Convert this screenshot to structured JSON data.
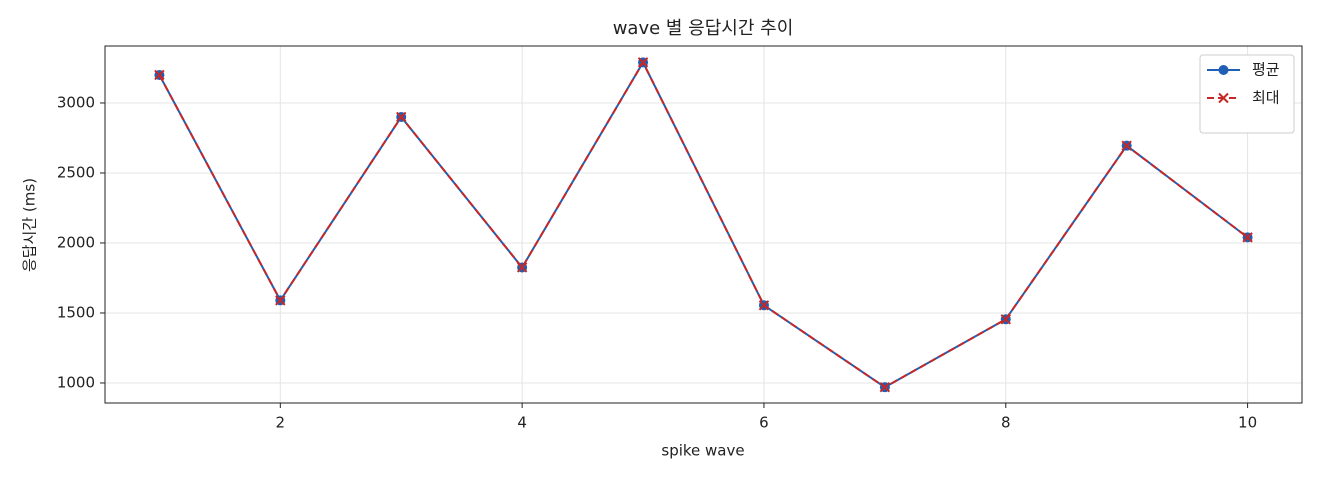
{
  "chart_data": {
    "type": "line",
    "title": "wave 별 응답시간 추이",
    "x_label": "spike wave",
    "y_label": "응답시간 (ms)",
    "x": [
      1,
      2,
      3,
      4,
      5,
      6,
      7,
      8,
      9,
      10
    ],
    "series": [
      {
        "name": "평균",
        "color": "#1f5fb4",
        "marker": "circle",
        "dash": "solid",
        "values": [
          3200,
          1590,
          2900,
          1825,
          3290,
          1555,
          970,
          1455,
          2695,
          2040
        ]
      },
      {
        "name": "최대",
        "color": "#c62828",
        "marker": "x",
        "dash": "dashed",
        "values": [
          3200,
          1590,
          2900,
          1825,
          3290,
          1555,
          970,
          1455,
          2695,
          2040
        ]
      }
    ],
    "xlim": [
      0.55,
      10.45
    ],
    "xticks": [
      2,
      4,
      6,
      8,
      10
    ],
    "ylim": [
      857,
      3407
    ],
    "yticks": [
      1000,
      1500,
      2000,
      2500,
      3000
    ],
    "grid": true,
    "legend": "upper right"
  }
}
